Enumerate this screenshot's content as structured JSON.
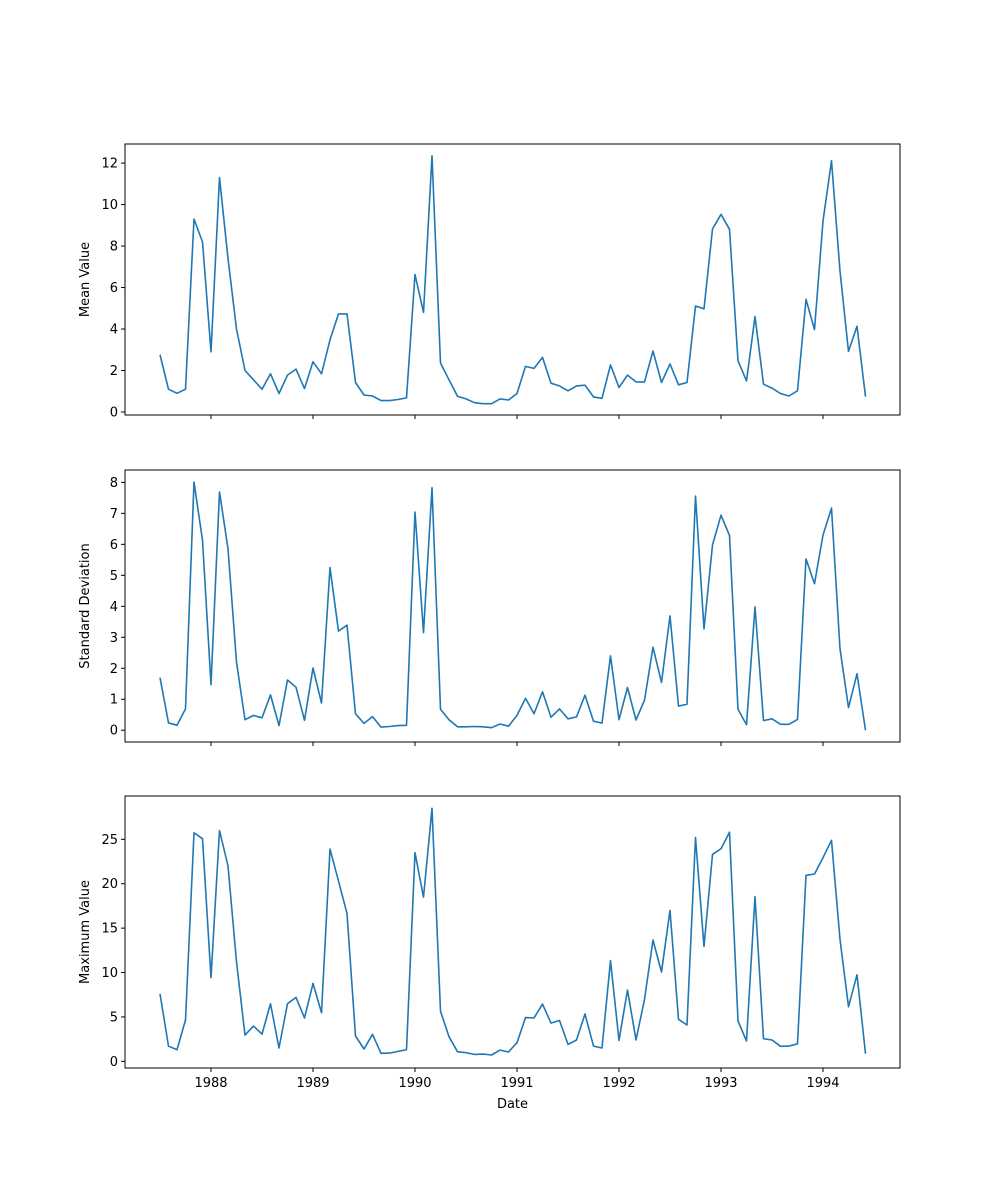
{
  "chart_data": [
    {
      "type": "line",
      "title": "",
      "xlabel": "",
      "ylabel": "Mean Value",
      "x_start": "1987-07",
      "x_frequency": "monthly",
      "xlim": [
        1987.157,
        1994.755
      ],
      "ylim": [
        -0.145,
        12.92
      ],
      "yticks": [
        0,
        2,
        4,
        6,
        8,
        10,
        12
      ],
      "xticks": [
        1988,
        1989,
        1990,
        1991,
        1992,
        1993,
        1994
      ],
      "show_xticklabels": false,
      "grid": false,
      "color": "#1f77b4",
      "values": [
        2.76,
        1.1,
        0.9,
        1.1,
        9.3,
        8.2,
        2.9,
        11.3,
        7.4,
        4.0,
        2.0,
        1.55,
        1.1,
        1.84,
        0.89,
        1.78,
        2.07,
        1.13,
        2.42,
        1.84,
        3.48,
        4.73,
        4.73,
        1.42,
        0.82,
        0.77,
        0.55,
        0.55,
        0.6,
        0.68,
        6.63,
        4.8,
        12.35,
        2.36,
        1.55,
        0.76,
        0.63,
        0.45,
        0.4,
        0.4,
        0.63,
        0.58,
        0.89,
        2.2,
        2.1,
        2.63,
        1.39,
        1.26,
        1.02,
        1.26,
        1.29,
        0.73,
        0.66,
        2.27,
        1.18,
        1.78,
        1.45,
        1.45,
        2.94,
        1.42,
        2.32,
        1.31,
        1.42,
        5.11,
        4.97,
        8.82,
        9.53,
        8.81,
        2.47,
        1.5,
        4.6,
        1.34,
        1.15,
        0.89,
        0.77,
        1.02,
        5.43,
        3.97,
        9.21,
        12.11,
        6.79,
        2.92,
        4.13,
        0.74
      ]
    },
    {
      "type": "line",
      "title": "",
      "xlabel": "",
      "ylabel": "Standard Deviation",
      "x_start": "1987-07",
      "x_frequency": "monthly",
      "xlim": [
        1987.157,
        1994.755
      ],
      "ylim": [
        -0.38,
        8.4
      ],
      "yticks": [
        0,
        1,
        2,
        3,
        4,
        5,
        6,
        7,
        8
      ],
      "xticks": [
        1988,
        1989,
        1990,
        1991,
        1992,
        1993,
        1994
      ],
      "show_xticklabels": false,
      "grid": false,
      "color": "#1f77b4",
      "values": [
        1.7,
        0.24,
        0.16,
        0.69,
        8.01,
        6.13,
        1.47,
        7.69,
        5.86,
        2.2,
        0.34,
        0.48,
        0.4,
        1.14,
        0.15,
        1.62,
        1.39,
        0.32,
        2.01,
        0.88,
        5.25,
        3.2,
        3.39,
        0.53,
        0.22,
        0.44,
        0.1,
        0.12,
        0.15,
        0.16,
        7.04,
        3.15,
        7.83,
        0.68,
        0.34,
        0.11,
        0.11,
        0.12,
        0.11,
        0.08,
        0.2,
        0.13,
        0.48,
        1.03,
        0.53,
        1.24,
        0.42,
        0.69,
        0.37,
        0.43,
        1.13,
        0.29,
        0.23,
        2.4,
        0.34,
        1.38,
        0.33,
        0.97,
        2.68,
        1.54,
        3.69,
        0.78,
        0.84,
        7.56,
        3.27,
        5.98,
        6.94,
        6.29,
        0.68,
        0.18,
        3.98,
        0.31,
        0.37,
        0.19,
        0.19,
        0.35,
        5.53,
        4.73,
        6.3,
        7.17,
        2.63,
        0.73,
        1.82,
        0.0
      ]
    },
    {
      "type": "line",
      "title": "",
      "xlabel": "Date",
      "ylabel": "Maximum Value",
      "x_start": "1987-07",
      "x_frequency": "monthly",
      "xlim": [
        1987.157,
        1994.755
      ],
      "ylim": [
        -0.75,
        29.88
      ],
      "yticks": [
        0,
        5,
        10,
        15,
        20,
        25
      ],
      "xticks": [
        1988,
        1989,
        1990,
        1991,
        1992,
        1993,
        1994
      ],
      "show_xticklabels": true,
      "grid": false,
      "color": "#1f77b4",
      "values": [
        7.6,
        1.72,
        1.31,
        4.65,
        25.74,
        25.07,
        9.42,
        26.0,
        22.0,
        11.2,
        2.96,
        3.97,
        3.07,
        6.49,
        1.5,
        6.49,
        7.2,
        4.88,
        8.78,
        5.48,
        23.9,
        20.3,
        16.66,
        2.85,
        1.39,
        3.04,
        0.9,
        0.93,
        1.12,
        1.31,
        23.5,
        18.5,
        28.5,
        5.66,
        2.77,
        1.09,
        0.97,
        0.78,
        0.82,
        0.71,
        1.27,
        1.05,
        2.1,
        4.93,
        4.88,
        6.45,
        4.31,
        4.61,
        1.91,
        2.4,
        5.33,
        1.72,
        1.5,
        11.33,
        2.36,
        8.03,
        2.4,
        6.98,
        13.66,
        10.06,
        17.0,
        4.73,
        4.09,
        25.2,
        12.94,
        23.3,
        23.95,
        25.8,
        4.54,
        2.29,
        18.54,
        2.55,
        2.4,
        1.69,
        1.72,
        1.98,
        20.94,
        21.1,
        22.93,
        24.89,
        13.74,
        6.15,
        9.75,
        0.86
      ]
    }
  ]
}
